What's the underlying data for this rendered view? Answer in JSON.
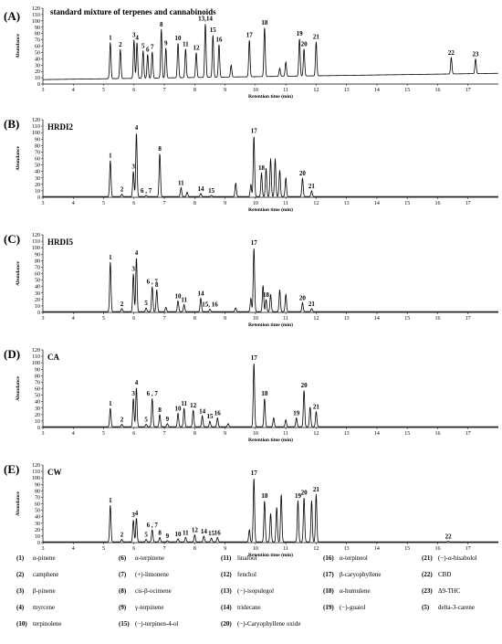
{
  "chart_data": [
    {
      "type": "line",
      "panel": "(A)",
      "title": "standard mixture of terpenes and cannabinoids",
      "xlabel": "Retention time (min)",
      "ylabel": "Abundance",
      "xlim": [
        3,
        18
      ],
      "ylim": [
        0,
        120
      ],
      "xticks": [
        "3",
        "4",
        "5",
        "6",
        "7",
        "8",
        "9",
        "10",
        "11",
        "12",
        "13",
        "14",
        "15",
        "16",
        "17"
      ],
      "yticks": [
        "0",
        "10",
        "20",
        "30",
        "40",
        "50",
        "60",
        "70",
        "80",
        "90",
        "100",
        "110",
        "120"
      ],
      "baseline_start": 7,
      "baseline_end": 17,
      "peaks": [
        {
          "x": 5.22,
          "y": 66,
          "label": "1"
        },
        {
          "x": 5.55,
          "y": 55,
          "label": "2"
        },
        {
          "x": 6.0,
          "y": 70,
          "label": "3"
        },
        {
          "x": 6.1,
          "y": 66,
          "label": "4"
        },
        {
          "x": 6.3,
          "y": 53,
          "label": "5"
        },
        {
          "x": 6.45,
          "y": 47,
          "label": "6"
        },
        {
          "x": 6.6,
          "y": 51,
          "label": "7"
        },
        {
          "x": 6.9,
          "y": 87,
          "label": "8"
        },
        {
          "x": 7.05,
          "y": 57,
          "label": "9"
        },
        {
          "x": 7.45,
          "y": 65,
          "label": "10"
        },
        {
          "x": 7.7,
          "y": 56,
          "label": "11"
        },
        {
          "x": 8.05,
          "y": 50,
          "label": "12"
        },
        {
          "x": 8.35,
          "y": 96,
          "label": "13,14"
        },
        {
          "x": 8.6,
          "y": 78,
          "label": "15"
        },
        {
          "x": 8.8,
          "y": 63,
          "label": "16"
        },
        {
          "x": 9.2,
          "y": 30,
          "label": ""
        },
        {
          "x": 9.8,
          "y": 70,
          "label": "17"
        },
        {
          "x": 10.3,
          "y": 90,
          "label": "18"
        },
        {
          "x": 10.8,
          "y": 25,
          "label": ""
        },
        {
          "x": 11.0,
          "y": 35,
          "label": ""
        },
        {
          "x": 11.45,
          "y": 72,
          "label": "19"
        },
        {
          "x": 11.6,
          "y": 56,
          "label": "20"
        },
        {
          "x": 12.0,
          "y": 67,
          "label": "21"
        },
        {
          "x": 16.45,
          "y": 42,
          "label": "22"
        },
        {
          "x": 17.25,
          "y": 40,
          "label": "23"
        }
      ]
    },
    {
      "type": "line",
      "panel": "(B)",
      "title": "HRDI2",
      "xlabel": "Retention time (min)",
      "ylabel": "Abundance",
      "xlim": [
        3,
        18
      ],
      "ylim": [
        0,
        120
      ],
      "xticks": [
        "3",
        "4",
        "5",
        "6",
        "7",
        "8",
        "9",
        "10",
        "11",
        "12",
        "13",
        "14",
        "15",
        "16",
        "17"
      ],
      "yticks": [
        "0",
        "10",
        "20",
        "30",
        "40",
        "50",
        "60",
        "70",
        "80",
        "90",
        "100",
        "110",
        "120"
      ],
      "baseline_start": 0,
      "baseline_end": 0,
      "peaks": [
        {
          "x": 5.22,
          "y": 57,
          "label": "1"
        },
        {
          "x": 5.6,
          "y": 5,
          "label": "2"
        },
        {
          "x": 5.98,
          "y": 40,
          "label": "3"
        },
        {
          "x": 6.08,
          "y": 100,
          "label": "4"
        },
        {
          "x": 6.4,
          "y": 3,
          "label": "6 , 7"
        },
        {
          "x": 6.85,
          "y": 68,
          "label": "8"
        },
        {
          "x": 7.55,
          "y": 15,
          "label": "11"
        },
        {
          "x": 7.75,
          "y": 8,
          "label": ""
        },
        {
          "x": 8.2,
          "y": 6,
          "label": "14"
        },
        {
          "x": 8.55,
          "y": 3,
          "label": "15"
        },
        {
          "x": 9.35,
          "y": 22,
          "label": ""
        },
        {
          "x": 9.85,
          "y": 20,
          "label": ""
        },
        {
          "x": 9.95,
          "y": 95,
          "label": "17"
        },
        {
          "x": 10.2,
          "y": 38,
          "label": "18"
        },
        {
          "x": 10.35,
          "y": 45,
          "label": ""
        },
        {
          "x": 10.5,
          "y": 60,
          "label": ""
        },
        {
          "x": 10.65,
          "y": 60,
          "label": ""
        },
        {
          "x": 10.8,
          "y": 42,
          "label": ""
        },
        {
          "x": 11.0,
          "y": 30,
          "label": ""
        },
        {
          "x": 11.55,
          "y": 30,
          "label": "20"
        },
        {
          "x": 11.85,
          "y": 10,
          "label": "21"
        }
      ]
    },
    {
      "type": "line",
      "panel": "(C)",
      "title": "HRDI5",
      "xlabel": "Retention time (min)",
      "ylabel": "Abundance",
      "xlim": [
        3,
        18
      ],
      "ylim": [
        0,
        120
      ],
      "xticks": [
        "3",
        "4",
        "5",
        "6",
        "7",
        "8",
        "9",
        "10",
        "11",
        "12",
        "13",
        "14",
        "15",
        "16",
        "17"
      ],
      "yticks": [
        "0",
        "10",
        "20",
        "30",
        "40",
        "50",
        "60",
        "70",
        "80",
        "90",
        "100",
        "110",
        "120"
      ],
      "baseline_start": 0,
      "baseline_end": 0,
      "peaks": [
        {
          "x": 5.22,
          "y": 78,
          "label": "1"
        },
        {
          "x": 5.6,
          "y": 6,
          "label": "2"
        },
        {
          "x": 5.98,
          "y": 60,
          "label": "3"
        },
        {
          "x": 6.08,
          "y": 85,
          "label": "4"
        },
        {
          "x": 6.4,
          "y": 7,
          "label": "5"
        },
        {
          "x": 6.6,
          "y": 40,
          "label": "6 , 7"
        },
        {
          "x": 6.75,
          "y": 35,
          "label": "8"
        },
        {
          "x": 7.05,
          "y": 8,
          "label": ""
        },
        {
          "x": 7.45,
          "y": 18,
          "label": "10"
        },
        {
          "x": 7.65,
          "y": 12,
          "label": "11"
        },
        {
          "x": 8.2,
          "y": 22,
          "label": "14"
        },
        {
          "x": 8.5,
          "y": 5,
          "label": "15, 16"
        },
        {
          "x": 9.35,
          "y": 7,
          "label": ""
        },
        {
          "x": 9.85,
          "y": 22,
          "label": ""
        },
        {
          "x": 9.95,
          "y": 100,
          "label": "17"
        },
        {
          "x": 10.25,
          "y": 42,
          "label": ""
        },
        {
          "x": 10.35,
          "y": 20,
          "label": "18"
        },
        {
          "x": 10.5,
          "y": 28,
          "label": ""
        },
        {
          "x": 10.8,
          "y": 35,
          "label": ""
        },
        {
          "x": 11.0,
          "y": 28,
          "label": ""
        },
        {
          "x": 11.55,
          "y": 15,
          "label": "20"
        },
        {
          "x": 11.85,
          "y": 6,
          "label": "21"
        }
      ]
    },
    {
      "type": "line",
      "panel": "(D)",
      "title": "CA",
      "xlabel": "Retention time (min)",
      "ylabel": "Abundance",
      "xlim": [
        3,
        18
      ],
      "ylim": [
        0,
        120
      ],
      "xticks": [
        "3",
        "4",
        "5",
        "6",
        "7",
        "8",
        "9",
        "10",
        "11",
        "12",
        "13",
        "14",
        "15",
        "16",
        "17"
      ],
      "yticks": [
        "0",
        "10",
        "20",
        "30",
        "40",
        "50",
        "60",
        "70",
        "80",
        "90",
        "100",
        "110",
        "120"
      ],
      "baseline_start": 0,
      "baseline_end": 0,
      "peaks": [
        {
          "x": 5.22,
          "y": 30,
          "label": "1"
        },
        {
          "x": 5.6,
          "y": 5,
          "label": "2"
        },
        {
          "x": 5.98,
          "y": 45,
          "label": "3"
        },
        {
          "x": 6.08,
          "y": 62,
          "label": "4"
        },
        {
          "x": 6.4,
          "y": 5,
          "label": "5"
        },
        {
          "x": 6.6,
          "y": 45,
          "label": "6 , 7"
        },
        {
          "x": 6.85,
          "y": 20,
          "label": "8"
        },
        {
          "x": 7.1,
          "y": 6,
          "label": "9"
        },
        {
          "x": 7.45,
          "y": 22,
          "label": "10"
        },
        {
          "x": 7.65,
          "y": 30,
          "label": "11"
        },
        {
          "x": 7.95,
          "y": 27,
          "label": "12"
        },
        {
          "x": 8.25,
          "y": 18,
          "label": "14"
        },
        {
          "x": 8.5,
          "y": 10,
          "label": "15"
        },
        {
          "x": 8.75,
          "y": 15,
          "label": "16"
        },
        {
          "x": 9.1,
          "y": 6,
          "label": ""
        },
        {
          "x": 9.95,
          "y": 100,
          "label": "17"
        },
        {
          "x": 10.3,
          "y": 45,
          "label": "18"
        },
        {
          "x": 10.6,
          "y": 15,
          "label": ""
        },
        {
          "x": 11.0,
          "y": 12,
          "label": ""
        },
        {
          "x": 11.35,
          "y": 15,
          "label": "19"
        },
        {
          "x": 11.6,
          "y": 58,
          "label": "20"
        },
        {
          "x": 11.8,
          "y": 32,
          "label": ""
        },
        {
          "x": 12.0,
          "y": 25,
          "label": "21"
        }
      ]
    },
    {
      "type": "line",
      "panel": "(E)",
      "title": "CW",
      "xlabel": "Retention time (min)",
      "ylabel": "Abundance",
      "xlim": [
        3,
        18
      ],
      "ylim": [
        0,
        120
      ],
      "xticks": [
        "3",
        "4",
        "5",
        "6",
        "7",
        "8",
        "9",
        "10",
        "11",
        "12",
        "13",
        "14",
        "15",
        "16",
        "17"
      ],
      "yticks": [
        "0",
        "10",
        "20",
        "30",
        "40",
        "50",
        "60",
        "70",
        "80",
        "90",
        "100",
        "110",
        "120"
      ],
      "baseline_start": 0,
      "baseline_end": 0,
      "peaks": [
        {
          "x": 5.22,
          "y": 58,
          "label": "1"
        },
        {
          "x": 5.6,
          "y": 5,
          "label": "2"
        },
        {
          "x": 5.98,
          "y": 35,
          "label": "3"
        },
        {
          "x": 6.08,
          "y": 38,
          "label": "4"
        },
        {
          "x": 6.4,
          "y": 5,
          "label": "5"
        },
        {
          "x": 6.6,
          "y": 20,
          "label": "6 , 7"
        },
        {
          "x": 6.85,
          "y": 8,
          "label": "8"
        },
        {
          "x": 7.1,
          "y": 3,
          "label": "9"
        },
        {
          "x": 7.45,
          "y": 6,
          "label": "10"
        },
        {
          "x": 7.7,
          "y": 8,
          "label": "11"
        },
        {
          "x": 8.0,
          "y": 12,
          "label": "12"
        },
        {
          "x": 8.3,
          "y": 10,
          "label": "14"
        },
        {
          "x": 8.55,
          "y": 7,
          "label": "15"
        },
        {
          "x": 8.75,
          "y": 8,
          "label": "16"
        },
        {
          "x": 9.8,
          "y": 20,
          "label": ""
        },
        {
          "x": 9.95,
          "y": 100,
          "label": "17"
        },
        {
          "x": 10.3,
          "y": 65,
          "label": "18"
        },
        {
          "x": 10.5,
          "y": 45,
          "label": ""
        },
        {
          "x": 10.7,
          "y": 55,
          "label": ""
        },
        {
          "x": 10.85,
          "y": 75,
          "label": ""
        },
        {
          "x": 11.4,
          "y": 65,
          "label": "19"
        },
        {
          "x": 11.6,
          "y": 70,
          "label": "20"
        },
        {
          "x": 11.85,
          "y": 65,
          "label": ""
        },
        {
          "x": 12.0,
          "y": 75,
          "label": "21"
        },
        {
          "x": 16.35,
          "y": 2,
          "label": "22"
        }
      ]
    }
  ],
  "legend": [
    {
      "num": "(1)",
      "name": "α-pinene"
    },
    {
      "num": "(6)",
      "name": "α-terpinene"
    },
    {
      "num": "(11)",
      "name": "linalool"
    },
    {
      "num": "(16)",
      "name": "α-terpineol"
    },
    {
      "num": "(21)",
      "name": "(−)-α-bisabolol"
    },
    {
      "num": "(2)",
      "name": "camphene"
    },
    {
      "num": "(7)",
      "name": "(+)-limonene"
    },
    {
      "num": "(12)",
      "name": "fenchol"
    },
    {
      "num": "(17)",
      "name": "β-caryophyllene"
    },
    {
      "num": "(22)",
      "name": "CBD"
    },
    {
      "num": "(3)",
      "name": "β-pinene"
    },
    {
      "num": "(8)",
      "name": "cis-β-ocimene"
    },
    {
      "num": "(13)",
      "name": "(−)-isopulegol"
    },
    {
      "num": "(18)",
      "name": "α-humulene"
    },
    {
      "num": "(23)",
      "name": "Δ9-THC"
    },
    {
      "num": "(4)",
      "name": "myrcene"
    },
    {
      "num": "(9)",
      "name": "γ-terpinene"
    },
    {
      "num": "(14)",
      "name": "tridecane"
    },
    {
      "num": "(19)",
      "name": "(−)-guaiol"
    },
    {
      "num": "(5)",
      "name": "delta-3-carene"
    },
    {
      "num": "(10)",
      "name": "terpinolene"
    },
    {
      "num": "(15)",
      "name": "(−)-terpinen-4-ol"
    },
    {
      "num": "(20)",
      "name": "(−)-Caryophyllene oxide"
    }
  ]
}
